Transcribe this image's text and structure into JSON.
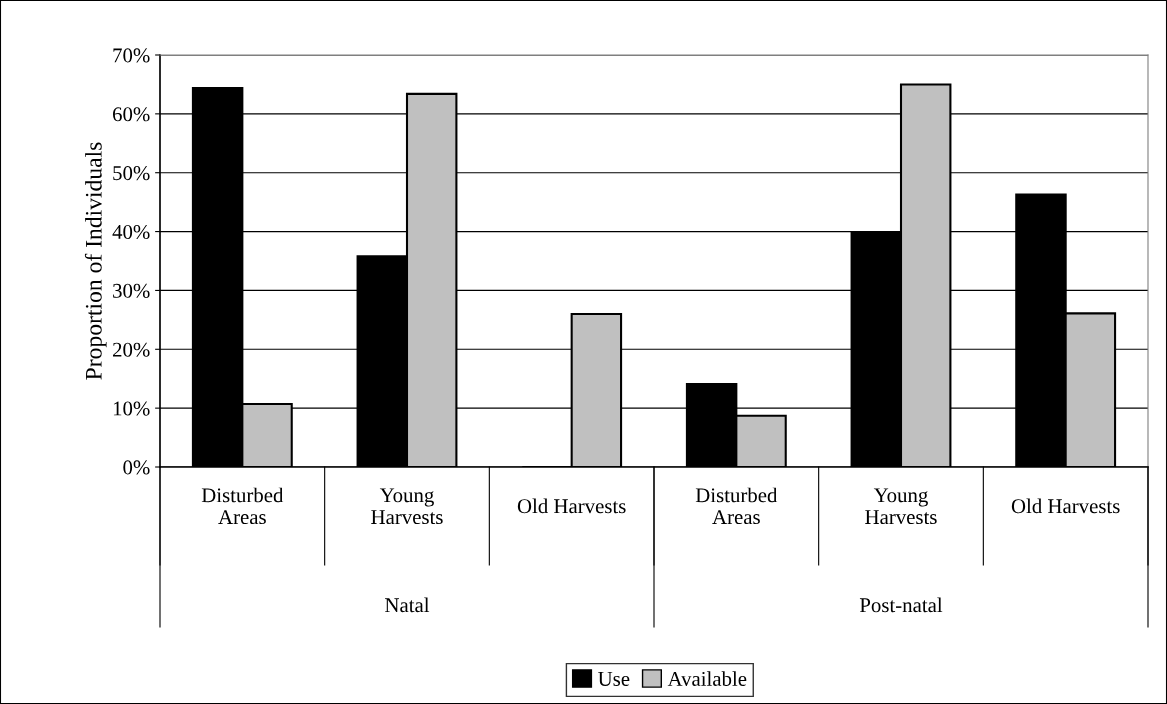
{
  "chart_data": {
    "type": "bar",
    "ylabel": "Proportion of Individuals",
    "categories": [
      "Disturbed\nAreas",
      "Young\nHarvests",
      "Old Harvests",
      "Disturbed\nAreas",
      "Young\nHarvests",
      "Old Harvests"
    ],
    "series": [
      {
        "name": "Use",
        "color": "#000000",
        "values": [
          64.4,
          35.8,
          0,
          14.1,
          39.8,
          46.3
        ]
      },
      {
        "name": "Available",
        "color": "#c0c0c0",
        "values": [
          10.7,
          63.4,
          26.0,
          8.7,
          65.0,
          26.1
        ]
      }
    ],
    "annotations": [
      "Natal",
      "Post-natal"
    ],
    "ylim": [
      0,
      70
    ],
    "yticks": [
      {
        "value": 0,
        "label": "0%"
      },
      {
        "value": 10,
        "label": "10%"
      },
      {
        "value": 20,
        "label": "20%"
      },
      {
        "value": 30,
        "label": "30%"
      },
      {
        "value": 40,
        "label": "40%"
      },
      {
        "value": 50,
        "label": "50%"
      },
      {
        "value": 60,
        "label": "60%"
      },
      {
        "value": 70,
        "label": "70%"
      }
    ],
    "grid": "y",
    "legend": "bottom"
  }
}
